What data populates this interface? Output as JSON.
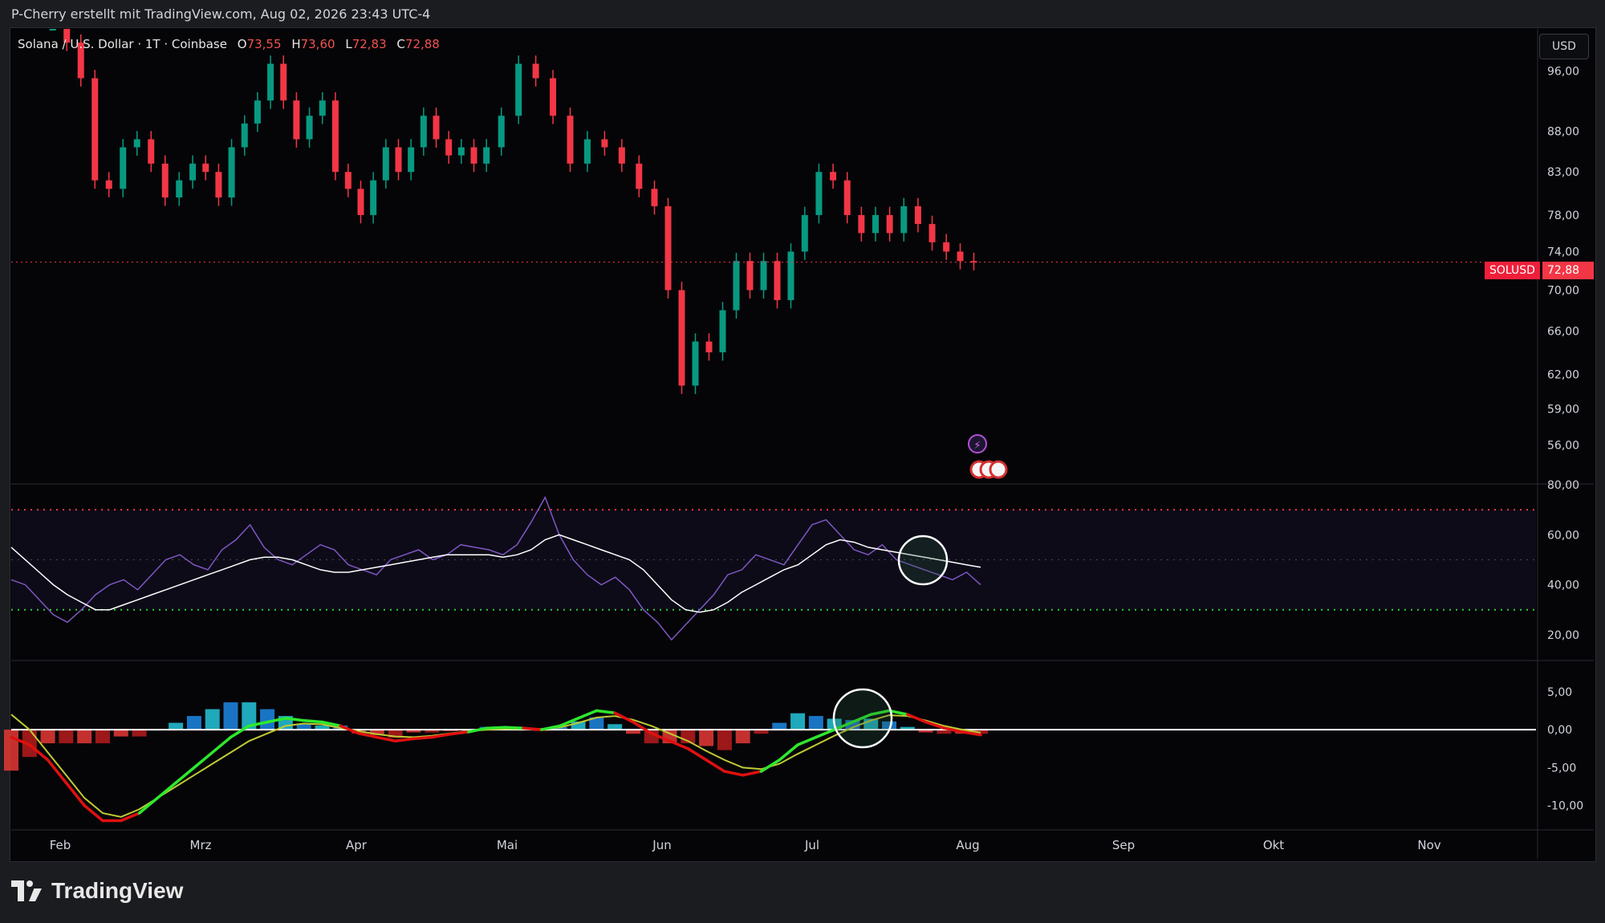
{
  "header": {
    "attribution": "P-Cherry erstellt mit TradingView.com, Aug 02, 2026 23:43 UTC-4"
  },
  "symbol": {
    "name": "Solana / U.S. Dollar · 1T · Coinbase",
    "o_label": "O",
    "o": "73,55",
    "h_label": "H",
    "h": "73,60",
    "l_label": "L",
    "l": "72,83",
    "c_label": "C",
    "c": "72,88"
  },
  "currency_button": "USD",
  "price_badge": {
    "symbol": "SOLUSD",
    "price": "72,88"
  },
  "footer": {
    "brand": "TradingView"
  },
  "colors": {
    "up": "#089981",
    "down": "#f23645",
    "rsi": "#7e57c2",
    "background": "#050508"
  },
  "chart_data": [
    {
      "type": "candlestick",
      "title": "Solana / U.S. Dollar · 1T · Coinbase",
      "scale": "log",
      "ylim": [
        53,
        102
      ],
      "y_ticks": [
        "96,00",
        "88,00",
        "83,00",
        "78,00",
        "74,00",
        "70,00",
        "66,00",
        "62,00",
        "59,00",
        "56,00"
      ],
      "y_tick_values": [
        96,
        88,
        83,
        78,
        74,
        70,
        66,
        62,
        59,
        56
      ],
      "x_ticks": [
        "Feb",
        "Mrz",
        "Apr",
        "Mai",
        "Jun",
        "Jul",
        "Aug",
        "Sep",
        "Okt",
        "Nov"
      ],
      "last_price": 72.88,
      "close_path": [
        {
          "m": "Feb",
          "v": 103
        },
        {
          "m": "Feb",
          "v": 100
        },
        {
          "m": "Feb",
          "v": 95
        },
        {
          "m": "Feb",
          "v": 82
        },
        {
          "m": "Feb",
          "v": 81
        },
        {
          "m": "Feb",
          "v": 86
        },
        {
          "m": "Feb",
          "v": 87
        },
        {
          "m": "Feb",
          "v": 84
        },
        {
          "m": "Feb",
          "v": 80
        },
        {
          "m": "Feb",
          "v": 82
        },
        {
          "m": "Mrz",
          "v": 84
        },
        {
          "m": "Mrz",
          "v": 83
        },
        {
          "m": "Mrz",
          "v": 80
        },
        {
          "m": "Mrz",
          "v": 86
        },
        {
          "m": "Mrz",
          "v": 89
        },
        {
          "m": "Mrz",
          "v": 92
        },
        {
          "m": "Mrz",
          "v": 97
        },
        {
          "m": "Mrz",
          "v": 92
        },
        {
          "m": "Mrz",
          "v": 87
        },
        {
          "m": "Mrz",
          "v": 90
        },
        {
          "m": "Mrz",
          "v": 92
        },
        {
          "m": "Mrz",
          "v": 83
        },
        {
          "m": "Apr",
          "v": 81
        },
        {
          "m": "Apr",
          "v": 78
        },
        {
          "m": "Apr",
          "v": 82
        },
        {
          "m": "Apr",
          "v": 86
        },
        {
          "m": "Apr",
          "v": 83
        },
        {
          "m": "Apr",
          "v": 86
        },
        {
          "m": "Apr",
          "v": 90
        },
        {
          "m": "Apr",
          "v": 87
        },
        {
          "m": "Apr",
          "v": 85
        },
        {
          "m": "Apr",
          "v": 86
        },
        {
          "m": "Apr",
          "v": 84
        },
        {
          "m": "Apr",
          "v": 86
        },
        {
          "m": "Mai",
          "v": 90
        },
        {
          "m": "Mai",
          "v": 97
        },
        {
          "m": "Mai",
          "v": 95
        },
        {
          "m": "Mai",
          "v": 90
        },
        {
          "m": "Mai",
          "v": 84
        },
        {
          "m": "Mai",
          "v": 87
        },
        {
          "m": "Mai",
          "v": 86
        },
        {
          "m": "Mai",
          "v": 84
        },
        {
          "m": "Mai",
          "v": 81
        },
        {
          "m": "Jun",
          "v": 79
        },
        {
          "m": "Jun",
          "v": 70
        },
        {
          "m": "Jun",
          "v": 61
        },
        {
          "m": "Jun",
          "v": 65
        },
        {
          "m": "Jun",
          "v": 64
        },
        {
          "m": "Jun",
          "v": 68
        },
        {
          "m": "Jun",
          "v": 73
        },
        {
          "m": "Jun",
          "v": 70
        },
        {
          "m": "Jun",
          "v": 73
        },
        {
          "m": "Jun",
          "v": 69
        },
        {
          "m": "Jun",
          "v": 74
        },
        {
          "m": "Jul",
          "v": 78
        },
        {
          "m": "Jul",
          "v": 83
        },
        {
          "m": "Jul",
          "v": 82
        },
        {
          "m": "Jul",
          "v": 78
        },
        {
          "m": "Jul",
          "v": 76
        },
        {
          "m": "Jul",
          "v": 78
        },
        {
          "m": "Jul",
          "v": 76
        },
        {
          "m": "Jul",
          "v": 79
        },
        {
          "m": "Jul",
          "v": 77
        },
        {
          "m": "Jul",
          "v": 75
        },
        {
          "m": "Jul",
          "v": 74
        },
        {
          "m": "Aug",
          "v": 73
        },
        {
          "m": "Aug",
          "v": 72.88
        }
      ]
    },
    {
      "type": "line",
      "title": "RSI",
      "ylim": [
        10,
        80
      ],
      "y_ticks": [
        "80,00",
        "60,00",
        "40,00",
        "20,00"
      ],
      "y_tick_values": [
        80,
        60,
        40,
        20
      ],
      "levels": [
        70,
        50,
        30
      ],
      "series": [
        {
          "values": [
            42,
            40,
            34,
            28,
            25,
            30,
            36,
            40,
            42,
            38,
            44,
            50,
            52,
            48,
            46,
            54,
            58,
            64,
            55,
            50,
            48,
            52,
            56,
            54,
            48,
            46,
            44,
            50,
            52,
            54,
            50,
            52,
            56,
            55,
            54,
            52,
            56,
            65,
            75,
            60,
            50,
            44,
            40,
            43,
            38,
            30,
            25,
            18,
            24,
            30,
            36,
            44,
            46,
            52,
            50,
            48,
            56,
            64,
            66,
            60,
            54,
            52,
            56,
            50,
            48,
            46,
            44,
            42,
            45,
            40
          ]
        },
        {
          "values": [
            55,
            50,
            45,
            40,
            36,
            33,
            30,
            30,
            32,
            34,
            36,
            38,
            40,
            42,
            44,
            46,
            48,
            50,
            51,
            51,
            50,
            48,
            46,
            45,
            45,
            46,
            47,
            48,
            49,
            50,
            51,
            52,
            52,
            52,
            52,
            51,
            52,
            54,
            58,
            60,
            58,
            56,
            54,
            52,
            50,
            46,
            40,
            34,
            30,
            29,
            30,
            33,
            37,
            40,
            43,
            46,
            48,
            52,
            56,
            58,
            57,
            55,
            54,
            53,
            52,
            51,
            50,
            49,
            48,
            47
          ]
        }
      ]
    },
    {
      "type": "bar",
      "title": "MACD",
      "ylim": [
        -13,
        9
      ],
      "y_ticks": [
        "5,00",
        "0,00",
        "-5,00",
        "-10,00"
      ],
      "y_tick_values": [
        5,
        0,
        -5,
        -10
      ],
      "series": [
        {
          "values": [
            -1,
            -2,
            -4,
            -7,
            -10,
            -12,
            -12,
            -11,
            -9,
            -7,
            -5,
            -3,
            -1,
            0.5,
            1,
            1.5,
            1.2,
            1,
            0.5,
            -0.5,
            -1,
            -1.5,
            -1.2,
            -1,
            -0.6,
            -0.3,
            0.2,
            0.3,
            0.2,
            0,
            0.5,
            1.5,
            2.5,
            2.2,
            1,
            -0.5,
            -1.5,
            -2.5,
            -4,
            -5.5,
            -6,
            -5.5,
            -4,
            -2,
            -1,
            0,
            1,
            2,
            2.5,
            2.0,
            1.0,
            0.2,
            -0.3,
            -0.7
          ]
        },
        {
          "values": [
            2,
            0,
            -3,
            -6,
            -9,
            -11,
            -11.5,
            -10.5,
            -9,
            -7.5,
            -6,
            -4.5,
            -3,
            -1.5,
            -0.5,
            0.5,
            0.8,
            0.7,
            0.2,
            -0.2,
            -0.6,
            -0.9,
            -1,
            -0.8,
            -0.5,
            -0.2,
            0,
            0.1,
            0.1,
            0.1,
            0.3,
            0.9,
            1.6,
            1.8,
            1.3,
            0.5,
            -0.5,
            -1.5,
            -2.8,
            -4,
            -5,
            -5.2,
            -4.5,
            -3.2,
            -2,
            -0.8,
            0.3,
            1.2,
            1.9,
            1.8,
            1.2,
            0.5,
            0,
            -0.4
          ]
        }
      ]
    }
  ]
}
